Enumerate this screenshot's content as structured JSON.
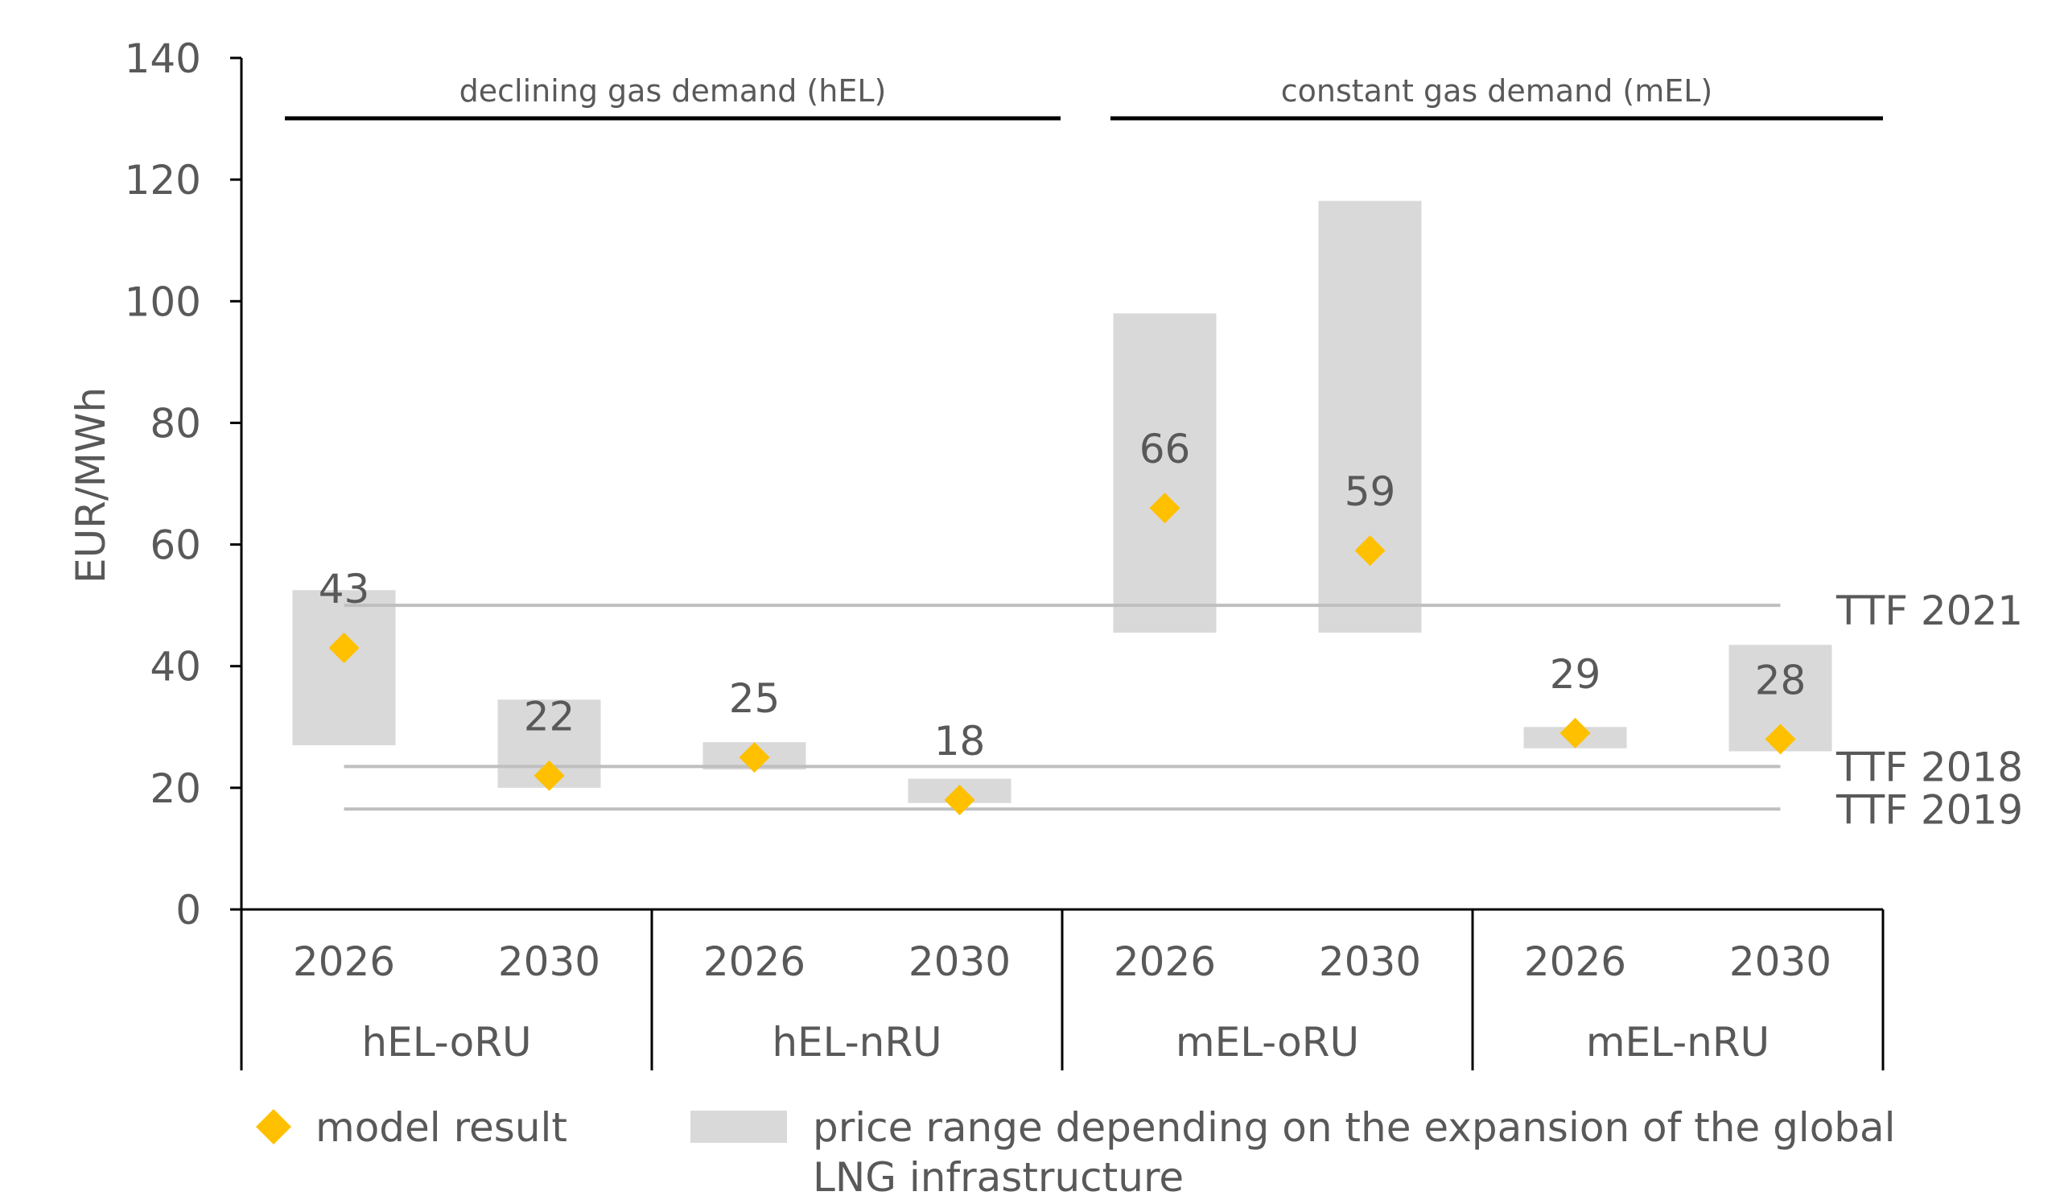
{
  "chart_data": {
    "type": "range-bar",
    "ylabel": "EUR/MWh",
    "ylim": [
      0,
      140
    ],
    "yticks": [
      0,
      20,
      40,
      60,
      80,
      100,
      120,
      140
    ],
    "grid": false,
    "groups": [
      {
        "name": "hEL-oRU",
        "years": [
          "2026",
          "2030"
        ]
      },
      {
        "name": "hEL-nRU",
        "years": [
          "2026",
          "2030"
        ]
      },
      {
        "name": "mEL-oRU",
        "years": [
          "2026",
          "2030"
        ]
      },
      {
        "name": "mEL-nRU",
        "years": [
          "2026",
          "2030"
        ]
      }
    ],
    "categories": [
      {
        "group": "hEL-oRU",
        "year": "2026",
        "model_result": 43,
        "range": [
          27,
          52.5
        ]
      },
      {
        "group": "hEL-oRU",
        "year": "2030",
        "model_result": 22,
        "range": [
          20,
          34.5
        ]
      },
      {
        "group": "hEL-nRU",
        "year": "2026",
        "model_result": 25,
        "range": [
          23,
          27.5
        ]
      },
      {
        "group": "hEL-nRU",
        "year": "2030",
        "model_result": 18,
        "range": [
          17.5,
          21.5
        ]
      },
      {
        "group": "mEL-oRU",
        "year": "2026",
        "model_result": 66,
        "range": [
          45.5,
          98
        ]
      },
      {
        "group": "mEL-oRU",
        "year": "2030",
        "model_result": 59,
        "range": [
          45.5,
          116.5
        ]
      },
      {
        "group": "mEL-nRU",
        "year": "2026",
        "model_result": 29,
        "range": [
          26.5,
          30
        ]
      },
      {
        "group": "mEL-nRU",
        "year": "2030",
        "model_result": 28,
        "range": [
          26,
          43.5
        ]
      }
    ],
    "reference_lines": [
      {
        "label": "TTF 2021",
        "value": 50
      },
      {
        "label": "TTF 2018",
        "value": 23.5
      },
      {
        "label": "TTF 2019",
        "value": 16.5
      }
    ],
    "demand_brackets": [
      {
        "label": "declining gas demand (hEL)",
        "groups": [
          "hEL-oRU",
          "hEL-nRU"
        ]
      },
      {
        "label": "constant gas demand (mEL)",
        "groups": [
          "mEL-oRU",
          "mEL-nRU"
        ]
      }
    ],
    "legend": {
      "position": "bottom",
      "items": [
        {
          "label": "model result",
          "marker": "diamond"
        },
        {
          "label_lines": [
            "price range depending on the expansion of the global",
            "LNG infrastructure"
          ],
          "marker": "rect"
        }
      ]
    },
    "colors": {
      "marker": "#FFC000",
      "range": "#D9D9D9",
      "reference_line": "#BFBFBF",
      "axis": "#000000",
      "text": "#595959"
    }
  }
}
